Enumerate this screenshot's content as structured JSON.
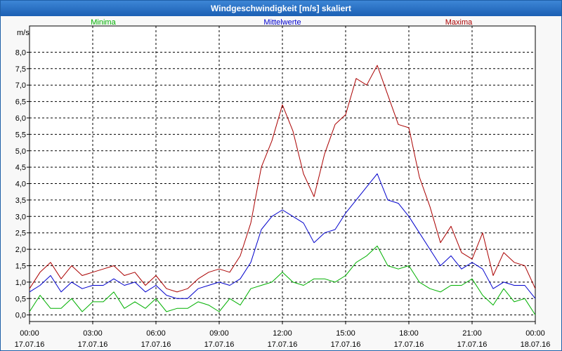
{
  "window": {
    "title": "Windgeschwindigkeit [m/s] skaliert"
  },
  "chart_data": {
    "type": "line",
    "title": "Windgeschwindigkeit [m/s] skaliert",
    "ylabel": "m/s",
    "ylim": [
      -0.2,
      8.8
    ],
    "yticks": [
      "0,0",
      "0,5",
      "1,0",
      "1,5",
      "2,0",
      "2,5",
      "3,0",
      "3,5",
      "4,0",
      "4,5",
      "5,0",
      "5,5",
      "6,0",
      "6,5",
      "7,0",
      "7,5",
      "8,0"
    ],
    "xticks": [
      {
        "time": "00:00",
        "date": "17.07.16"
      },
      {
        "time": "03:00",
        "date": "17.07.16"
      },
      {
        "time": "06:00",
        "date": "17.07.16"
      },
      {
        "time": "09:00",
        "date": "17.07.16"
      },
      {
        "time": "12:00",
        "date": "17.07.16"
      },
      {
        "time": "15:00",
        "date": "17.07.16"
      },
      {
        "time": "18:00",
        "date": "17.07.16"
      },
      {
        "time": "21:00",
        "date": "17.07.16"
      },
      {
        "time": "00:00",
        "date": "18.07.16"
      }
    ],
    "x_unit": "hours since 17.07.16 00:00",
    "series": [
      {
        "name": "Minima",
        "color": "#00b000",
        "points": [
          [
            0,
            0.1
          ],
          [
            0.5,
            0.6
          ],
          [
            1,
            0.2
          ],
          [
            1.5,
            0.2
          ],
          [
            2,
            0.5
          ],
          [
            2.5,
            0.1
          ],
          [
            3,
            0.4
          ],
          [
            3.5,
            0.4
          ],
          [
            4,
            0.7
          ],
          [
            4.5,
            0.2
          ],
          [
            5,
            0.4
          ],
          [
            5.5,
            0.2
          ],
          [
            6,
            0.5
          ],
          [
            6.5,
            0.1
          ],
          [
            7,
            0.2
          ],
          [
            7.5,
            0.2
          ],
          [
            8,
            0.4
          ],
          [
            8.5,
            0.3
          ],
          [
            9,
            0.1
          ],
          [
            9.5,
            0.5
          ],
          [
            10,
            0.3
          ],
          [
            10.5,
            0.8
          ],
          [
            11,
            0.9
          ],
          [
            11.5,
            1.0
          ],
          [
            12,
            1.3
          ],
          [
            12.5,
            1.0
          ],
          [
            13,
            0.9
          ],
          [
            13.5,
            1.1
          ],
          [
            14,
            1.1
          ],
          [
            14.5,
            1.0
          ],
          [
            15,
            1.2
          ],
          [
            15.5,
            1.6
          ],
          [
            16,
            1.8
          ],
          [
            16.5,
            2.1
          ],
          [
            17,
            1.5
          ],
          [
            17.5,
            1.4
          ],
          [
            18,
            1.5
          ],
          [
            18.5,
            1.0
          ],
          [
            19,
            0.8
          ],
          [
            19.5,
            0.7
          ],
          [
            20,
            0.9
          ],
          [
            20.5,
            0.9
          ],
          [
            21,
            1.1
          ],
          [
            21.5,
            0.6
          ],
          [
            22,
            0.3
          ],
          [
            22.5,
            0.8
          ],
          [
            23,
            0.4
          ],
          [
            23.5,
            0.5
          ],
          [
            24,
            0.0
          ]
        ]
      },
      {
        "name": "Mittelwerte",
        "color": "#0000cc",
        "points": [
          [
            0,
            0.7
          ],
          [
            0.5,
            0.9
          ],
          [
            1,
            1.2
          ],
          [
            1.5,
            0.7
          ],
          [
            2,
            1.0
          ],
          [
            2.5,
            0.8
          ],
          [
            3,
            0.9
          ],
          [
            3.5,
            0.9
          ],
          [
            4,
            1.1
          ],
          [
            4.5,
            0.9
          ],
          [
            5,
            1.0
          ],
          [
            5.5,
            0.7
          ],
          [
            6,
            0.9
          ],
          [
            6.5,
            0.6
          ],
          [
            7,
            0.5
          ],
          [
            7.5,
            0.5
          ],
          [
            8,
            0.8
          ],
          [
            8.5,
            0.9
          ],
          [
            9,
            1.0
          ],
          [
            9.5,
            0.9
          ],
          [
            10,
            1.1
          ],
          [
            10.5,
            1.6
          ],
          [
            11,
            2.6
          ],
          [
            11.5,
            3.0
          ],
          [
            12,
            3.2
          ],
          [
            12.5,
            3.0
          ],
          [
            13,
            2.8
          ],
          [
            13.5,
            2.2
          ],
          [
            14,
            2.5
          ],
          [
            14.5,
            2.6
          ],
          [
            15,
            3.1
          ],
          [
            15.5,
            3.5
          ],
          [
            16,
            3.9
          ],
          [
            16.5,
            4.3
          ],
          [
            17,
            3.5
          ],
          [
            17.5,
            3.4
          ],
          [
            18,
            3.0
          ],
          [
            18.5,
            2.5
          ],
          [
            19,
            2.0
          ],
          [
            19.5,
            1.5
          ],
          [
            20,
            1.8
          ],
          [
            20.5,
            1.4
          ],
          [
            21,
            1.6
          ],
          [
            21.5,
            1.4
          ],
          [
            22,
            0.8
          ],
          [
            22.5,
            1.0
          ],
          [
            23,
            0.9
          ],
          [
            23.5,
            0.9
          ],
          [
            24,
            0.5
          ]
        ]
      },
      {
        "name": "Maxima",
        "color": "#aa0000",
        "points": [
          [
            0,
            0.8
          ],
          [
            0.5,
            1.3
          ],
          [
            1,
            1.6
          ],
          [
            1.5,
            1.1
          ],
          [
            2,
            1.5
          ],
          [
            2.5,
            1.2
          ],
          [
            3,
            1.3
          ],
          [
            3.5,
            1.4
          ],
          [
            4,
            1.5
          ],
          [
            4.5,
            1.2
          ],
          [
            5,
            1.3
          ],
          [
            5.5,
            0.9
          ],
          [
            6,
            1.2
          ],
          [
            6.5,
            0.8
          ],
          [
            7,
            0.7
          ],
          [
            7.5,
            0.8
          ],
          [
            8,
            1.1
          ],
          [
            8.5,
            1.3
          ],
          [
            9,
            1.4
          ],
          [
            9.5,
            1.3
          ],
          [
            10,
            1.8
          ],
          [
            10.5,
            2.8
          ],
          [
            11,
            4.5
          ],
          [
            11.5,
            5.3
          ],
          [
            12,
            6.4
          ],
          [
            12.5,
            5.6
          ],
          [
            13,
            4.3
          ],
          [
            13.5,
            3.6
          ],
          [
            14,
            4.9
          ],
          [
            14.5,
            5.8
          ],
          [
            15,
            6.1
          ],
          [
            15.5,
            7.2
          ],
          [
            16,
            7.0
          ],
          [
            16.5,
            7.6
          ],
          [
            17,
            6.7
          ],
          [
            17.5,
            5.8
          ],
          [
            18,
            5.7
          ],
          [
            18.5,
            4.2
          ],
          [
            19,
            3.3
          ],
          [
            19.5,
            2.2
          ],
          [
            20,
            2.7
          ],
          [
            20.5,
            1.9
          ],
          [
            21,
            1.7
          ],
          [
            21.5,
            2.5
          ],
          [
            22,
            1.2
          ],
          [
            22.5,
            1.9
          ],
          [
            23,
            1.6
          ],
          [
            23.5,
            1.5
          ],
          [
            24,
            0.8
          ]
        ]
      }
    ]
  }
}
